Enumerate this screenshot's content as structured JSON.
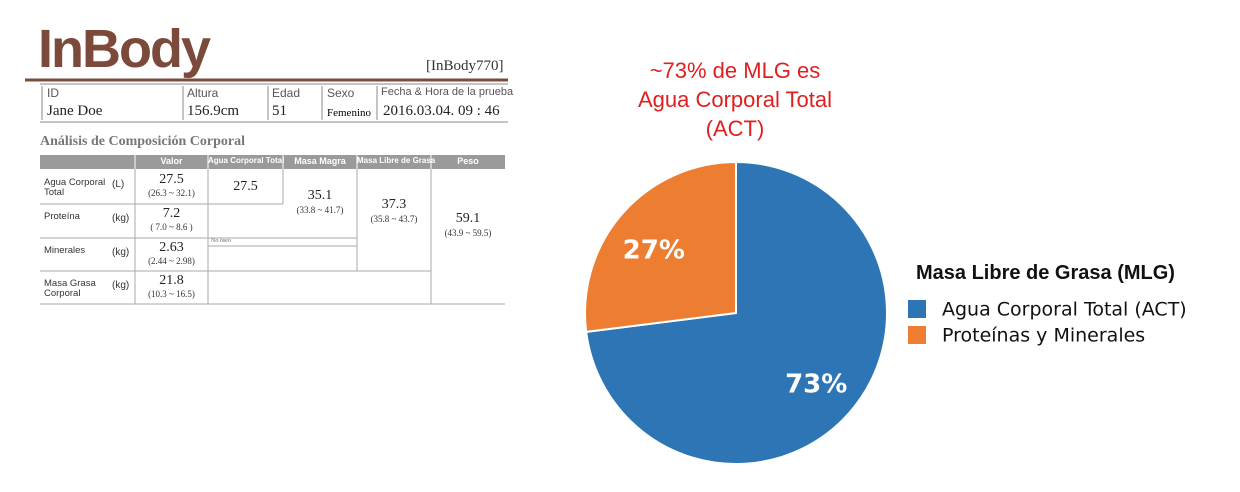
{
  "report": {
    "logo": "InBody",
    "model": "[InBody770]",
    "patient": {
      "labels": [
        "ID",
        "Altura",
        "Edad",
        "Sexo",
        "Fecha & Hora de la prueba"
      ],
      "values": [
        "Jane Doe",
        "156.9cm",
        "51",
        "Femenino",
        "2016.03.04. 09 : 46"
      ]
    },
    "section_title": "Análisis de Composición Corporal",
    "table": {
      "headers": [
        "Valor",
        "Agua Corporal Total",
        "Masa Magra",
        "Masa Libre de Grasa",
        "Peso"
      ],
      "rows": [
        {
          "label": "Agua Corporal Total",
          "unit": "(L)",
          "value": "27.5",
          "range": "(26.3 ~ 32.1)"
        },
        {
          "label": "Proteína",
          "unit": "(kg)",
          "value": "7.2",
          "range": "( 7.0 ~ 8.6 )"
        },
        {
          "label": "Minerales",
          "unit": "(kg)",
          "value": "2.63",
          "range": "(2.44 ~ 2.98)"
        },
        {
          "label": "Masa Grasa Corporal",
          "unit": "(kg)",
          "value": "21.8",
          "range": "(10.3 ~ 16.5)"
        }
      ],
      "agua_corporal_total": "27.5",
      "masa_magra": {
        "value": "35.1",
        "range": "(33.8 ~ 41.7)"
      },
      "masa_libre_de_grasa": {
        "value": "37.3",
        "range": "(35.8 ~ 43.7)"
      },
      "peso": {
        "value": "59.1",
        "range": "(43.9 ~ 59.5)"
      },
      "note": "No óseo"
    }
  },
  "chart_data": {
    "type": "pie",
    "title": [
      "~73% de MLG es",
      "Agua Corporal Total",
      "(ACT)"
    ],
    "legend_title": "Masa Libre de Grasa (MLG)",
    "categories": [
      "Agua Corporal Total (ACT)",
      "Proteínas y Minerales"
    ],
    "values": [
      73,
      27
    ],
    "value_labels": [
      "73%",
      "27%"
    ],
    "colors": [
      "#2e75b6",
      "#ed7d31"
    ],
    "legend": "right"
  }
}
